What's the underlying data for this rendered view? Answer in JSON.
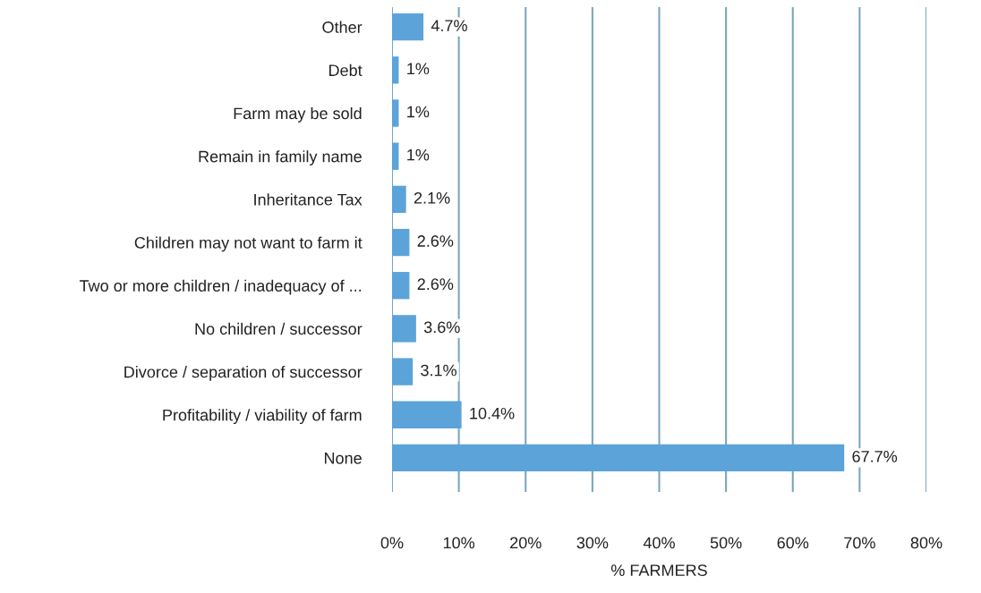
{
  "chart_data": {
    "type": "bar",
    "orientation": "horizontal",
    "xlabel": "% FARMERS",
    "categories": [
      "Other",
      "Debt",
      "Farm may be sold",
      "Remain in family name",
      "Inheritance Tax",
      "Children may not want to farm it",
      "Two or more children / inadequacy of ...",
      "No children / successor",
      "Divorce / separation of successor",
      "Profitability / viability of farm",
      "None"
    ],
    "values": [
      4.7,
      1,
      1,
      1,
      2.1,
      2.6,
      2.6,
      3.6,
      3.1,
      10.4,
      67.7
    ],
    "value_labels": [
      "4.7%",
      "1%",
      "1%",
      "1%",
      "2.1%",
      "2.6%",
      "2.6%",
      "3.6%",
      "3.1%",
      "10.4%",
      "67.7%"
    ],
    "color": "#5ba3d9",
    "xlim": [
      0,
      80
    ],
    "xticks": [
      {
        "value": 0,
        "label": "0%"
      },
      {
        "value": 10,
        "label": "10%"
      },
      {
        "value": 20,
        "label": "20%"
      },
      {
        "value": 30,
        "label": "30%"
      },
      {
        "value": 40,
        "label": "40%"
      },
      {
        "value": 50,
        "label": "50%"
      },
      {
        "value": 60,
        "label": "60%"
      },
      {
        "value": 70,
        "label": "70%"
      },
      {
        "value": 80,
        "label": "80%"
      }
    ],
    "grid": "x"
  }
}
